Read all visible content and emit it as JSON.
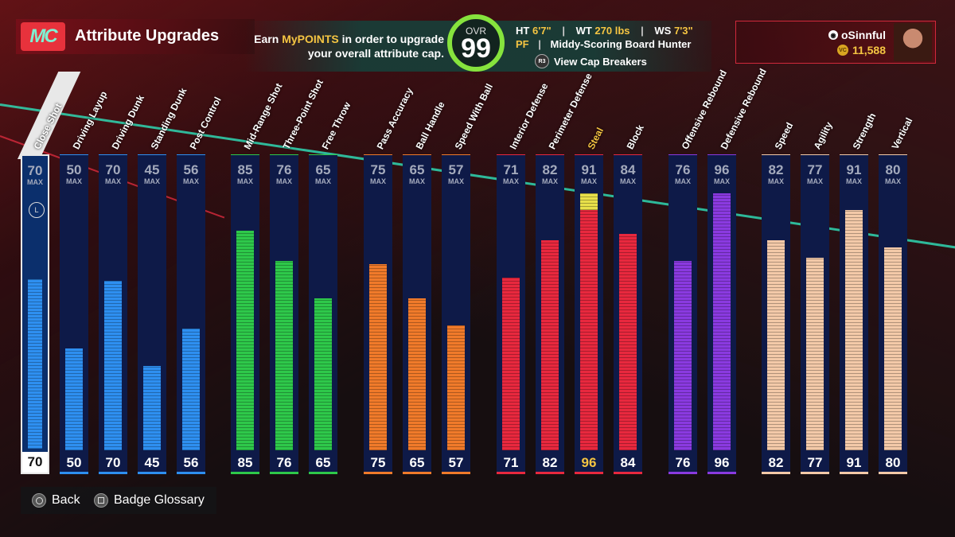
{
  "header": {
    "logo_text": "MC",
    "page_title": "Attribute Upgrades",
    "promo_prefix": "Earn ",
    "promo_highlight": "MyPOINTS",
    "promo_suffix": " in order to upgrade",
    "promo_line2": "your overall attribute cap.",
    "ovr_label": "OVR",
    "ovr_value": "99",
    "ht_label": "HT",
    "ht_value": "6'7\"",
    "wt_label": "WT",
    "wt_value": "270 lbs",
    "ws_label": "WS",
    "ws_value": "7'3\"",
    "position": "PF",
    "archetype": "Middy-Scoring Board Hunter",
    "cap_breakers_label": "View Cap Breakers",
    "cap_breakers_button_glyph": "R3"
  },
  "profile": {
    "username": "oSinnful",
    "vc_balance": "11,588",
    "vc_icon_label": "VC"
  },
  "max_label": "MAX",
  "attributes": [
    {
      "name": "Close Shot",
      "cap": "70",
      "value": "70",
      "fill": 70,
      "color": "#2e8ff0",
      "group": "finishing",
      "selected": true
    },
    {
      "name": "Driving Layup",
      "cap": "50",
      "value": "50",
      "fill": 50,
      "color": "#2e8ff0",
      "group": "finishing"
    },
    {
      "name": "Driving Dunk",
      "cap": "70",
      "value": "70",
      "fill": 70,
      "color": "#2e8ff0",
      "group": "finishing"
    },
    {
      "name": "Standing Dunk",
      "cap": "45",
      "value": "45",
      "fill": 45,
      "color": "#2e8ff0",
      "group": "finishing"
    },
    {
      "name": "Post Control",
      "cap": "56",
      "value": "56",
      "fill": 56,
      "color": "#2e8ff0",
      "group": "finishing"
    },
    {
      "name": "Mid-Range Shot",
      "cap": "85",
      "value": "85",
      "fill": 85,
      "color": "#2ec84a",
      "group": "shooting"
    },
    {
      "name": "Three-Point Shot",
      "cap": "76",
      "value": "76",
      "fill": 76,
      "color": "#2ec84a",
      "group": "shooting"
    },
    {
      "name": "Free Throw",
      "cap": "65",
      "value": "65",
      "fill": 65,
      "color": "#2ec84a",
      "group": "shooting"
    },
    {
      "name": "Pass Accuracy",
      "cap": "75",
      "value": "75",
      "fill": 75,
      "color": "#f07a2a",
      "group": "playmaking"
    },
    {
      "name": "Ball Handle",
      "cap": "65",
      "value": "65",
      "fill": 65,
      "color": "#f07a2a",
      "group": "playmaking"
    },
    {
      "name": "Speed With Ball",
      "cap": "57",
      "value": "57",
      "fill": 57,
      "color": "#f07a2a",
      "group": "playmaking"
    },
    {
      "name": "Interior Defense",
      "cap": "71",
      "value": "71",
      "fill": 71,
      "color": "#e8283e",
      "group": "defense"
    },
    {
      "name": "Perimeter Defense",
      "cap": "82",
      "value": "82",
      "fill": 82,
      "color": "#e8283e",
      "group": "defense"
    },
    {
      "name": "Steal",
      "cap": "91",
      "value": "96",
      "fill": 91,
      "boost": 96,
      "color": "#e8283e",
      "group": "defense",
      "highlight": true
    },
    {
      "name": "Block",
      "cap": "84",
      "value": "84",
      "fill": 84,
      "color": "#e8283e",
      "group": "defense"
    },
    {
      "name": "Offensive Rebound",
      "cap": "76",
      "value": "76",
      "fill": 76,
      "color": "#8a3ae0",
      "group": "rebounding"
    },
    {
      "name": "Defensive Rebound",
      "cap": "96",
      "value": "96",
      "fill": 96,
      "color": "#8a3ae0",
      "group": "rebounding"
    },
    {
      "name": "Speed",
      "cap": "82",
      "value": "82",
      "fill": 82,
      "color": "#f3c9a8",
      "group": "physicals"
    },
    {
      "name": "Agility",
      "cap": "77",
      "value": "77",
      "fill": 77,
      "color": "#f3c9a8",
      "group": "physicals"
    },
    {
      "name": "Strength",
      "cap": "91",
      "value": "91",
      "fill": 91,
      "color": "#f3c9a8",
      "group": "physicals"
    },
    {
      "name": "Vertical",
      "cap": "80",
      "value": "80",
      "fill": 80,
      "color": "#f3c9a8",
      "group": "physicals"
    }
  ],
  "footer": {
    "back_label": "Back",
    "glossary_label": "Badge Glossary"
  },
  "colors": {
    "accent_gold": "#f5c542",
    "ovr_ring": "#86e33d",
    "bar_bg": "#0e1a48"
  }
}
